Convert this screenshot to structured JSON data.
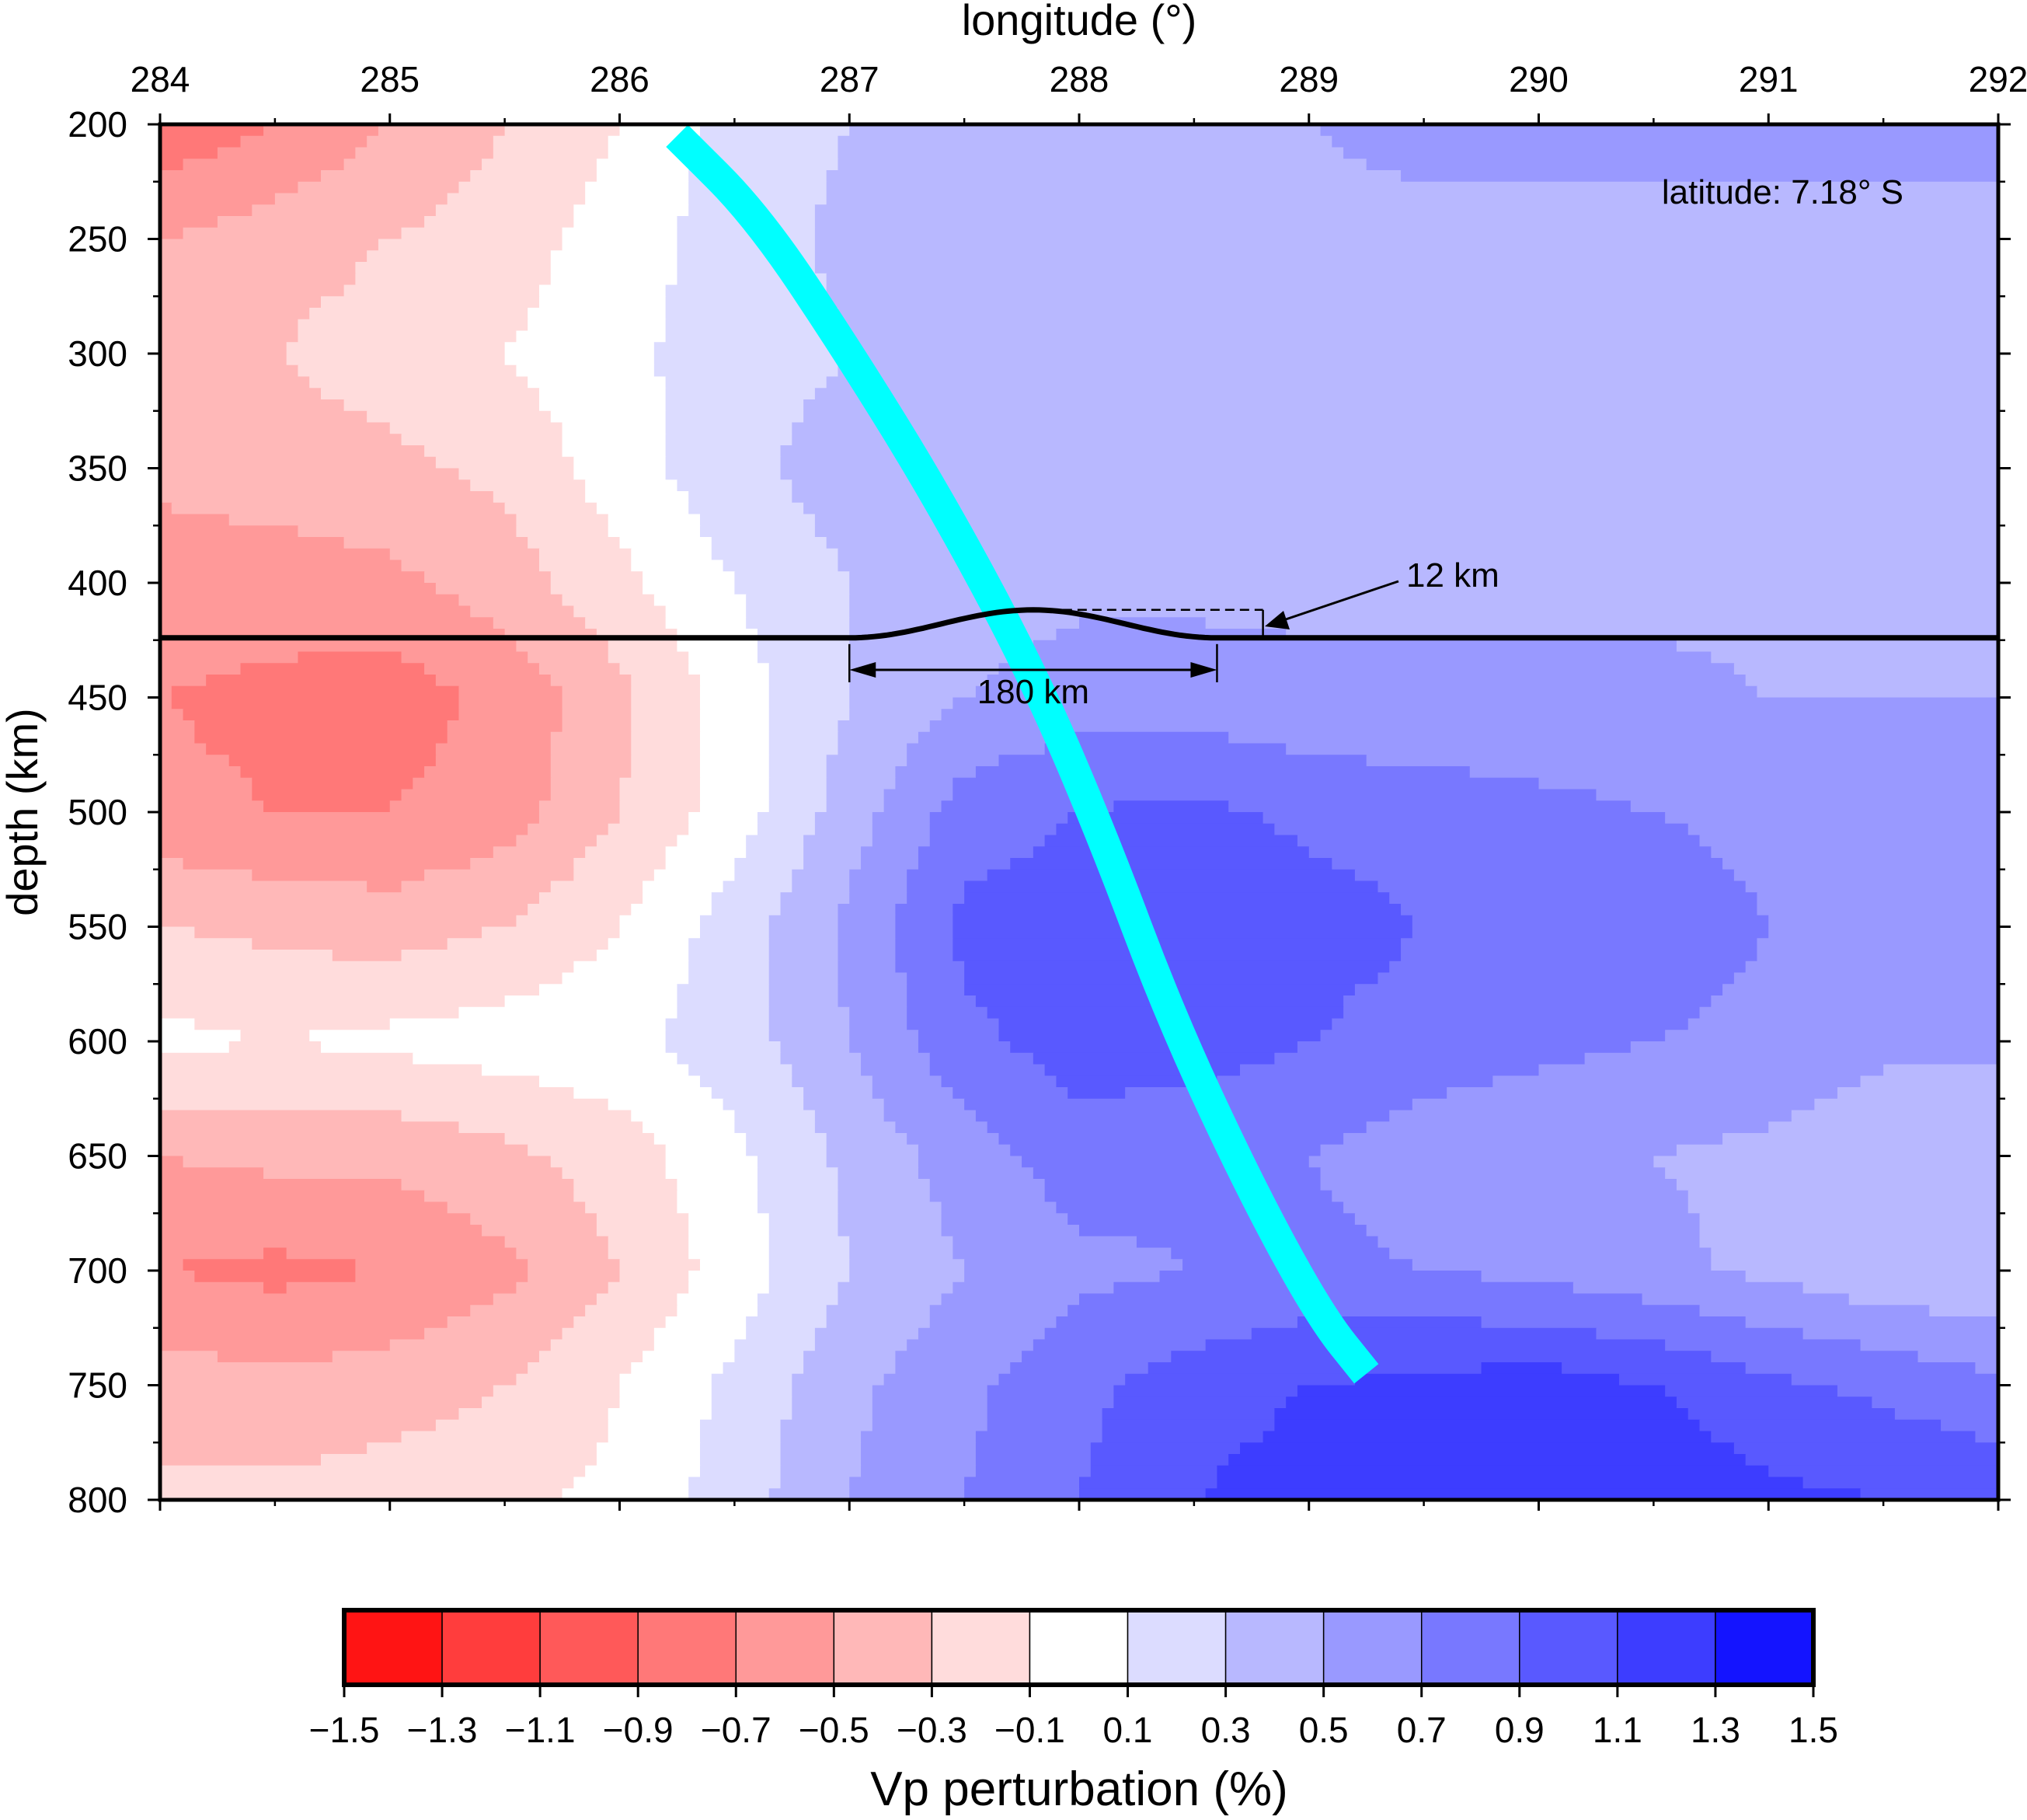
{
  "chart_data": {
    "type": "heatmap",
    "title": "",
    "xlabel": "longitude (°)",
    "ylabel": "depth (km)",
    "xlim": [
      284,
      292
    ],
    "ylim": [
      800,
      200
    ],
    "x_ticks": [
      284,
      285,
      286,
      287,
      288,
      289,
      290,
      291,
      292
    ],
    "y_ticks": [
      200,
      250,
      300,
      350,
      400,
      450,
      500,
      550,
      600,
      650,
      700,
      750,
      800
    ],
    "annotation_latitude": "latitude: 7.18° S",
    "discontinuity": {
      "depth_km": 424,
      "uplift_start_lon": 287.0,
      "uplift_end_lon": 288.6,
      "uplift_peak_lon": 287.8,
      "uplift_label": "12 km",
      "width_label": "180 km"
    },
    "slab": {
      "color": "#00ffff",
      "lon": [
        286.25,
        286.6,
        287.0,
        287.4,
        287.8,
        288.1,
        288.4,
        288.75,
        289.05,
        289.25
      ],
      "depth": [
        205,
        240,
        300,
        365,
        440,
        510,
        590,
        665,
        720,
        745
      ]
    },
    "colorbar": {
      "label": "Vp perturbation (%)",
      "tick_labels": [
        "−1.5",
        "−1.3",
        "−1.1",
        "−0.9",
        "−0.7",
        "−0.5",
        "−0.3",
        "−0.1",
        "0.1",
        "0.3",
        "0.5",
        "0.7",
        "0.9",
        "1.1",
        "1.3",
        "1.5"
      ],
      "colors": [
        "#ff1414",
        "#ff3d3d",
        "#ff5959",
        "#ff7878",
        "#ff9999",
        "#ffb8b8",
        "#ffdcdc",
        "#ffffff",
        "#dcdcff",
        "#b8b8ff",
        "#9999ff",
        "#7878ff",
        "#5959ff",
        "#3d3dff",
        "#1414ff"
      ]
    },
    "field": {
      "lon": [
        284,
        284.5,
        285,
        285.5,
        286,
        286.5,
        287,
        287.5,
        288,
        288.5,
        289,
        289.5,
        290,
        290.5,
        291,
        291.5,
        292
      ],
      "depth": [
        200,
        250,
        300,
        350,
        400,
        450,
        500,
        550,
        600,
        650,
        700,
        750,
        800
      ],
      "values": [
        [
          -0.85,
          -0.7,
          -0.5,
          -0.3,
          -0.1,
          0.2,
          0.3,
          0.35,
          0.4,
          0.45,
          0.5,
          0.55,
          0.55,
          0.55,
          0.55,
          0.55,
          0.55
        ],
        [
          -0.5,
          -0.4,
          -0.3,
          -0.2,
          0.0,
          0.2,
          0.35,
          0.4,
          0.4,
          0.45,
          0.45,
          0.45,
          0.45,
          0.45,
          0.45,
          0.45,
          0.45
        ],
        [
          -0.35,
          -0.3,
          -0.2,
          -0.1,
          0.05,
          0.2,
          0.3,
          0.3,
          0.35,
          0.4,
          0.4,
          0.4,
          0.4,
          0.4,
          0.4,
          0.4,
          0.4
        ],
        [
          -0.45,
          -0.4,
          -0.35,
          -0.25,
          0.0,
          0.25,
          0.4,
          0.45,
          0.45,
          0.45,
          0.45,
          0.45,
          0.45,
          0.45,
          0.45,
          0.45,
          0.45
        ],
        [
          -0.6,
          -0.6,
          -0.55,
          -0.4,
          -0.15,
          0.1,
          0.3,
          0.4,
          0.45,
          0.45,
          0.45,
          0.45,
          0.45,
          0.45,
          0.45,
          0.45,
          0.45
        ],
        [
          -0.7,
          -0.75,
          -0.8,
          -0.65,
          -0.35,
          0.0,
          0.3,
          0.5,
          0.6,
          0.6,
          0.55,
          0.55,
          0.55,
          0.55,
          0.5,
          0.5,
          0.5
        ],
        [
          -0.65,
          -0.7,
          -0.7,
          -0.6,
          -0.3,
          0.0,
          0.4,
          0.8,
          0.9,
          0.95,
          0.85,
          0.8,
          0.75,
          0.7,
          0.65,
          0.6,
          0.55
        ],
        [
          -0.3,
          -0.35,
          -0.4,
          -0.3,
          -0.1,
          0.2,
          0.55,
          0.95,
          1.0,
          1.1,
          1.0,
          0.9,
          0.85,
          0.8,
          0.7,
          0.6,
          0.55
        ],
        [
          -0.05,
          -0.1,
          -0.05,
          0.0,
          0.05,
          0.2,
          0.5,
          0.85,
          1.0,
          1.0,
          0.9,
          0.8,
          0.75,
          0.7,
          0.65,
          0.55,
          0.55
        ],
        [
          -0.5,
          -0.45,
          -0.45,
          -0.35,
          -0.2,
          0.05,
          0.35,
          0.6,
          0.8,
          0.75,
          0.7,
          0.6,
          0.55,
          0.5,
          0.45,
          0.35,
          0.3
        ],
        [
          -0.7,
          -0.75,
          -0.7,
          -0.55,
          -0.3,
          0.0,
          0.3,
          0.5,
          0.65,
          0.7,
          0.75,
          0.7,
          0.65,
          0.55,
          0.45,
          0.35,
          0.3
        ],
        [
          -0.4,
          -0.45,
          -0.4,
          -0.3,
          -0.1,
          0.15,
          0.45,
          0.65,
          0.85,
          1.0,
          1.1,
          1.15,
          1.2,
          1.1,
          0.95,
          0.85,
          0.75
        ],
        [
          -0.25,
          -0.25,
          -0.2,
          -0.15,
          -0.05,
          0.2,
          0.5,
          0.7,
          0.9,
          1.1,
          1.2,
          1.25,
          1.3,
          1.25,
          1.15,
          1.1,
          1.05
        ]
      ]
    }
  }
}
